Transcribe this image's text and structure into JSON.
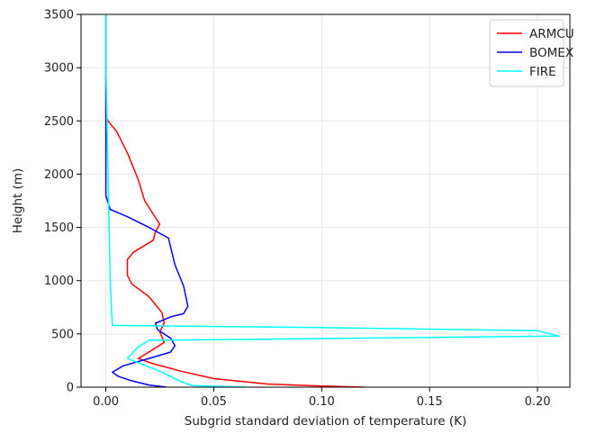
{
  "chart_data": {
    "type": "line",
    "xlabel": "Subgrid standard deviation of temperature (K)",
    "ylabel": "Height (m)",
    "xlim": [
      -0.0115,
      0.215
    ],
    "ylim": [
      0,
      3500
    ],
    "xticks": [
      0.0,
      0.05,
      0.1,
      0.15,
      0.2
    ],
    "xtick_labels": [
      "0.00",
      "0.05",
      "0.10",
      "0.15",
      "0.20"
    ],
    "yticks": [
      0,
      500,
      1000,
      1500,
      2000,
      2500,
      3000,
      3500
    ],
    "ytick_labels": [
      "0",
      "500",
      "1000",
      "1500",
      "2000",
      "2500",
      "3000",
      "3500"
    ],
    "grid": true,
    "legend_position": "top-right",
    "series": [
      {
        "name": "ARMCU",
        "color": "#ff0000",
        "points": [
          [
            0.12,
            0
          ],
          [
            0.1,
            10
          ],
          [
            0.075,
            30
          ],
          [
            0.05,
            80
          ],
          [
            0.035,
            150
          ],
          [
            0.022,
            220
          ],
          [
            0.015,
            270
          ],
          [
            0.02,
            330
          ],
          [
            0.027,
            420
          ],
          [
            0.025,
            520
          ],
          [
            0.027,
            600
          ],
          [
            0.026,
            700
          ],
          [
            0.02,
            850
          ],
          [
            0.012,
            970
          ],
          [
            0.01,
            1050
          ],
          [
            0.01,
            1200
          ],
          [
            0.013,
            1270
          ],
          [
            0.022,
            1380
          ],
          [
            0.023,
            1460
          ],
          [
            0.025,
            1530
          ],
          [
            0.018,
            1750
          ],
          [
            0.015,
            1950
          ],
          [
            0.01,
            2200
          ],
          [
            0.005,
            2400
          ],
          [
            0.001,
            2500
          ],
          [
            0.0,
            2550
          ],
          [
            0.0,
            3500
          ]
        ]
      },
      {
        "name": "BOMEX",
        "color": "#0000ff",
        "points": [
          [
            0.028,
            0
          ],
          [
            0.02,
            20
          ],
          [
            0.012,
            60
          ],
          [
            0.006,
            100
          ],
          [
            0.003,
            140
          ],
          [
            0.008,
            200
          ],
          [
            0.02,
            270
          ],
          [
            0.03,
            330
          ],
          [
            0.032,
            390
          ],
          [
            0.03,
            460
          ],
          [
            0.024,
            540
          ],
          [
            0.023,
            600
          ],
          [
            0.03,
            660
          ],
          [
            0.036,
            690
          ],
          [
            0.038,
            760
          ],
          [
            0.036,
            950
          ],
          [
            0.032,
            1150
          ],
          [
            0.029,
            1400
          ],
          [
            0.02,
            1500
          ],
          [
            0.01,
            1600
          ],
          [
            0.002,
            1670
          ],
          [
            0.0,
            1800
          ],
          [
            0.0,
            3500
          ]
        ]
      },
      {
        "name": "FIRE",
        "color": "#00ffff",
        "points": [
          [
            0.065,
            0
          ],
          [
            0.04,
            15
          ],
          [
            0.035,
            50
          ],
          [
            0.025,
            150
          ],
          [
            0.015,
            230
          ],
          [
            0.01,
            270
          ],
          [
            0.015,
            380
          ],
          [
            0.02,
            440
          ],
          [
            0.21,
            480
          ],
          [
            0.2,
            530
          ],
          [
            0.1,
            560
          ],
          [
            0.003,
            580
          ],
          [
            0.002,
            1000
          ],
          [
            0.001,
            2000
          ],
          [
            0.0,
            3000
          ],
          [
            0.0,
            3500
          ]
        ]
      }
    ]
  }
}
